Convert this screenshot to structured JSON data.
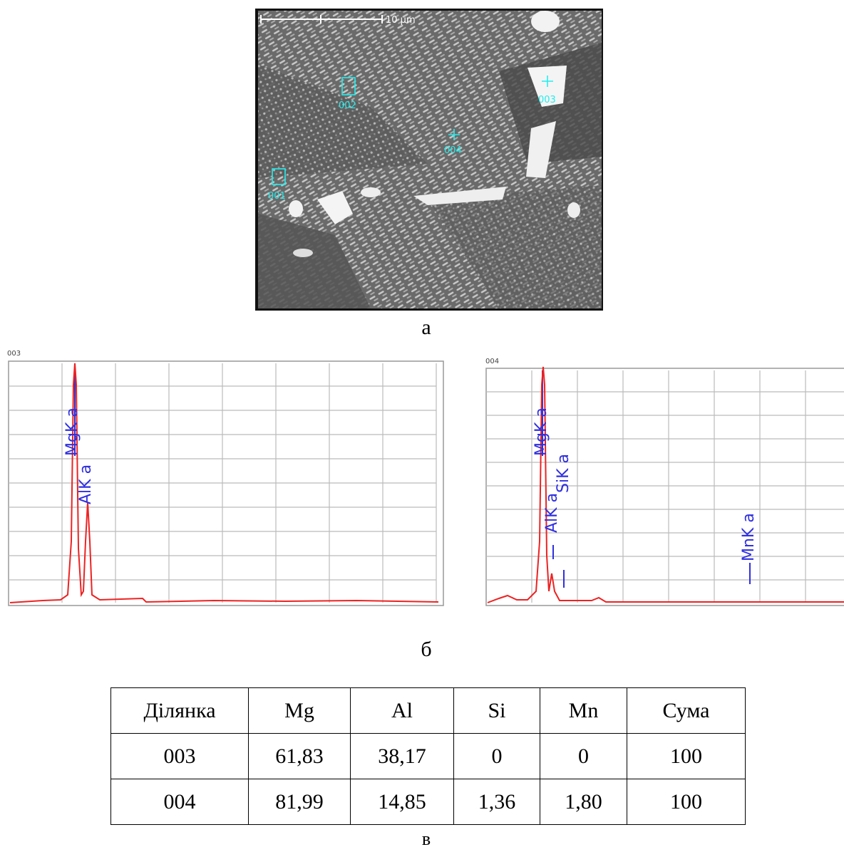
{
  "micrograph": {
    "scale_label": "10 µm",
    "markers": [
      "001",
      "002",
      "003",
      "004"
    ],
    "caption": "а"
  },
  "spectra": [
    {
      "title": "003",
      "peaks": [
        "MgK a",
        "AlK a"
      ]
    },
    {
      "title": "004",
      "peaks": [
        "MgK a",
        "SiK a",
        "AlK a",
        "MnK a"
      ]
    }
  ],
  "spectra_caption": "б",
  "table": {
    "header": [
      "Ділянка",
      "Mg",
      "Al",
      "Si",
      "Mn",
      "Сума"
    ],
    "rows": [
      [
        "003",
        "61,83",
        "38,17",
        "0",
        "0",
        "100"
      ],
      [
        "004",
        "81,99",
        "14,85",
        "1,36",
        "1,80",
        "100"
      ]
    ]
  },
  "table_caption": "в"
}
